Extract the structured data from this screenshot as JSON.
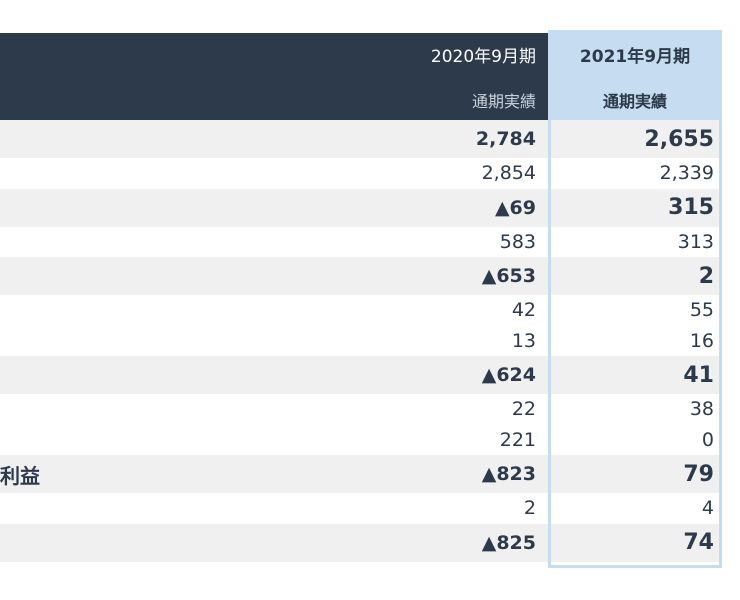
{
  "table": {
    "header": [
      {
        "period": "2020年9月期",
        "sub": "通期実績"
      },
      {
        "period": "2021年9月期",
        "sub": "通期実績"
      }
    ],
    "rows": [
      {
        "cells": [
          "2,784",
          "2,655"
        ],
        "bold": true
      },
      {
        "cells": [
          "2,854",
          "2,339"
        ],
        "bold": false
      },
      {
        "cells": [
          "▲69",
          "315"
        ],
        "bold": true
      },
      {
        "cells": [
          "583",
          "313"
        ],
        "bold": false
      },
      {
        "cells": [
          "▲653",
          "2"
        ],
        "bold": true
      },
      {
        "cells": [
          "42",
          "55"
        ],
        "bold": false
      },
      {
        "cells": [
          "13",
          "16"
        ],
        "bold": false
      },
      {
        "cells": [
          "▲624",
          "41"
        ],
        "bold": true
      },
      {
        "cells": [
          "22",
          "38"
        ],
        "bold": false
      },
      {
        "cells": [
          "221",
          "0"
        ],
        "bold": false
      },
      {
        "label": "利益",
        "cells": [
          "▲823",
          "79"
        ],
        "bold": true
      },
      {
        "cells": [
          "2",
          "4"
        ],
        "bold": false
      },
      {
        "cells": [
          "▲825",
          "74"
        ],
        "bold": true
      }
    ]
  }
}
